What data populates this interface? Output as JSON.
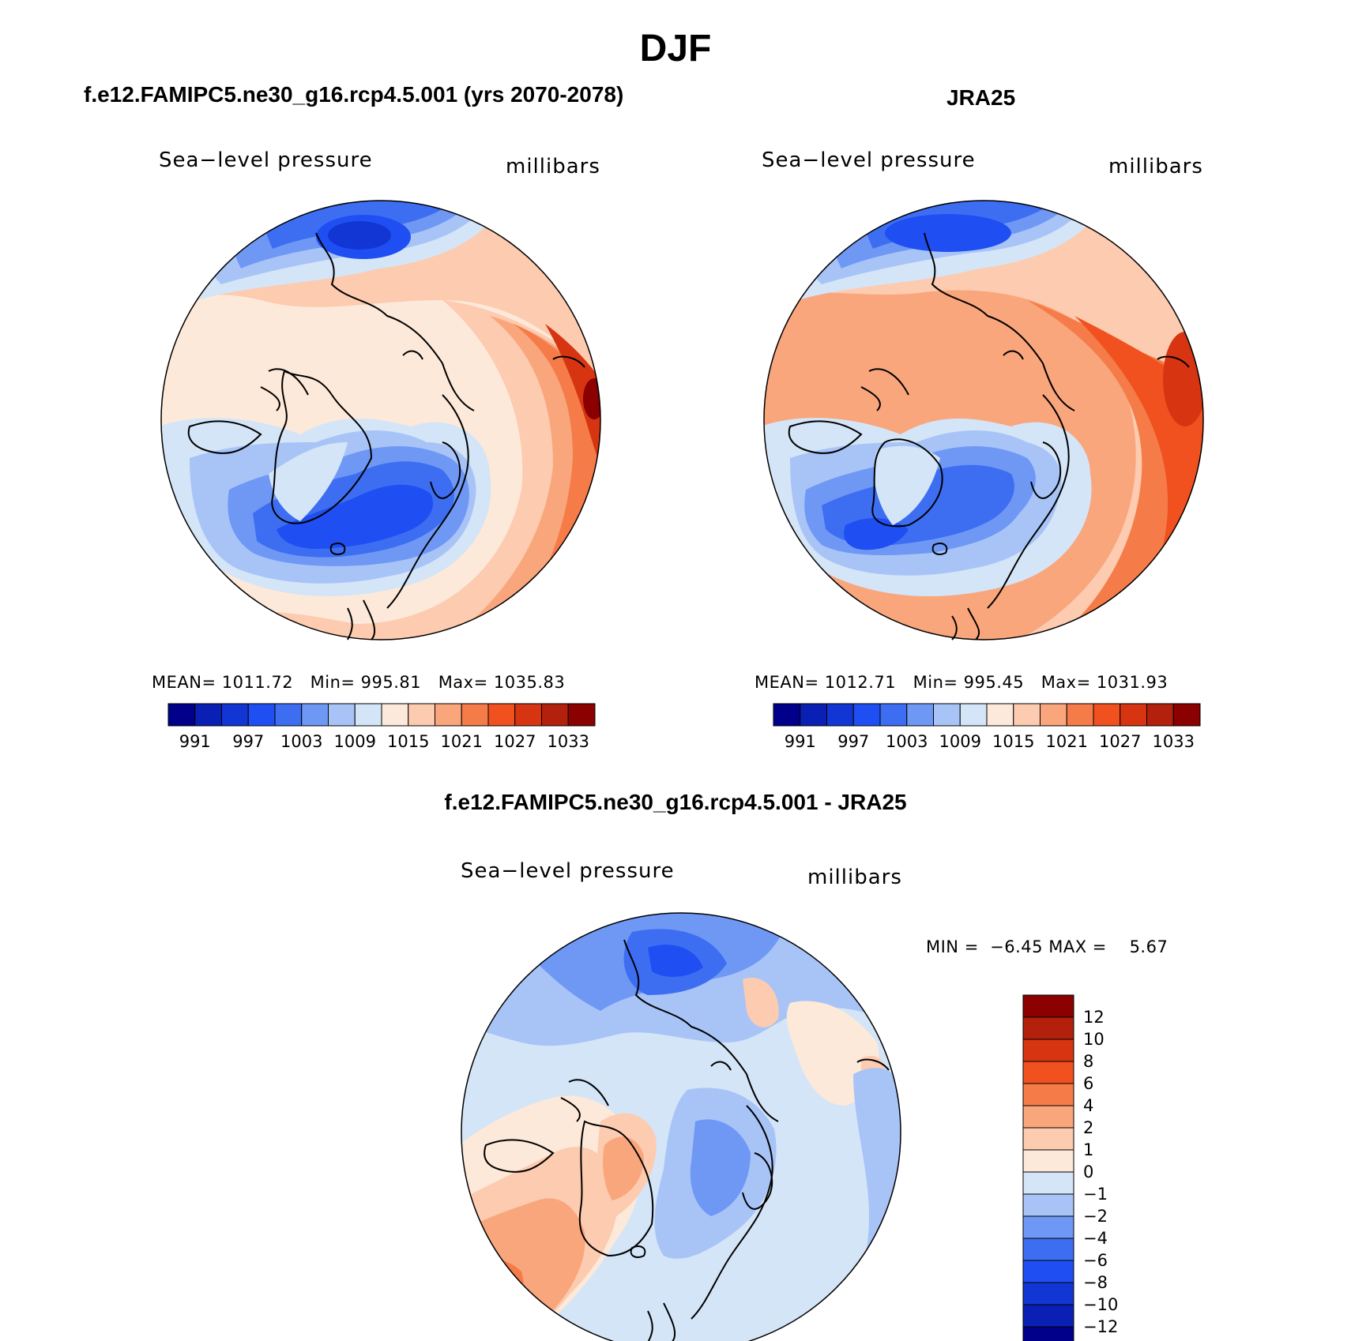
{
  "title": "DJF",
  "panels": [
    {
      "title": "f.e12.FAMIPC5.ne30_g16.rcp4.5.001 (yrs 2070-2078)",
      "variable": "Sea−level pressure",
      "units": "millibars",
      "stats": {
        "mean_label": "MEAN=",
        "mean": "1011.72",
        "min_label": "Min=",
        "min": "995.81",
        "max_label": "Max=",
        "max": "1035.83"
      }
    },
    {
      "title": "JRA25",
      "variable": "Sea−level pressure",
      "units": "millibars",
      "stats": {
        "mean_label": "MEAN=",
        "mean": "1012.71",
        "min_label": "Min=",
        "min": "995.45",
        "max_label": "Max=",
        "max": "1031.93"
      }
    },
    {
      "title": "f.e12.FAMIPC5.ne30_g16.rcp4.5.001 - JRA25",
      "variable": "Sea−level pressure",
      "units": "millibars",
      "stats": {
        "min_label": "MIN =",
        "min": "−6.45",
        "max_label": "MAX =",
        "max": "5.67"
      }
    }
  ],
  "colorbar_slp": {
    "labels": [
      "991",
      "997",
      "1003",
      "1009",
      "1015",
      "1021",
      "1027",
      "1033"
    ],
    "colors": [
      "#00008b",
      "#0a1fb3",
      "#1236d4",
      "#1f4ff2",
      "#3d6ef2",
      "#6f98f5",
      "#a8c4f7",
      "#d4e5f8",
      "#fde9d9",
      "#fccbb0",
      "#f9a67c",
      "#f57c49",
      "#f1511f",
      "#d73511",
      "#b3200c",
      "#8b0000"
    ]
  },
  "colorbar_diff": {
    "labels": [
      "12",
      "10",
      "8",
      "6",
      "4",
      "2",
      "1",
      "0",
      "−1",
      "−2",
      "−4",
      "−6",
      "−8",
      "−10",
      "−12"
    ],
    "colors": [
      "#8b0000",
      "#b3200c",
      "#d73511",
      "#f1511f",
      "#f57c49",
      "#f9a67c",
      "#fccbb0",
      "#fde9d9",
      "#d4e5f8",
      "#a8c4f7",
      "#6f98f5",
      "#3d6ef2",
      "#1f4ff2",
      "#1236d4",
      "#0a1fb3",
      "#00008b"
    ]
  }
}
